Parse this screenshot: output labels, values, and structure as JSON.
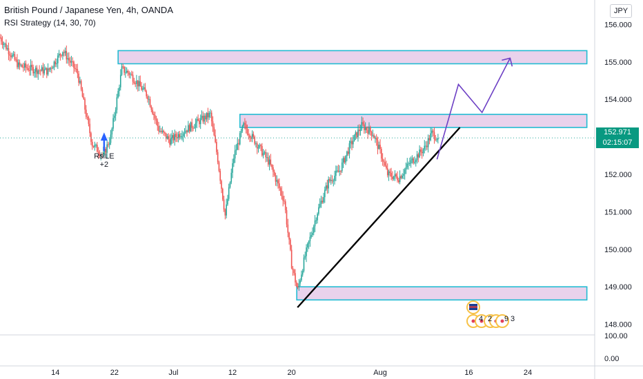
{
  "header": {
    "title": "British Pound / Japanese Yen, 4h, OANDA",
    "indicator": "RSI Strategy (14, 30, 70)"
  },
  "currency_button": "JPY",
  "last_price": {
    "value": "152.971",
    "countdown": "02:15:07",
    "price": 152.971
  },
  "colors": {
    "up": "#26a69a",
    "down": "#ef5350",
    "zone_fill": "#e9d2ec",
    "zone_border": "#22bcd2",
    "trend": "#000000",
    "projection": "#6c3fc4",
    "price_tag": "#089981"
  },
  "signal": {
    "label": "RsiLE",
    "qty": "+2"
  },
  "events": {
    "labels": [
      "4",
      "2",
      "9",
      "3"
    ]
  },
  "chart_data": {
    "type": "candlestick",
    "title": "British Pound / Japanese Yen, 4h, OANDA",
    "ylim": [
      147.6,
      156.4
    ],
    "y_ticks": [
      {
        "value": 156.0,
        "label": "156.000"
      },
      {
        "value": 155.0,
        "label": "155.000"
      },
      {
        "value": 154.0,
        "label": "154.000"
      },
      {
        "value": 152.0,
        "label": "152.000"
      },
      {
        "value": 151.0,
        "label": "151.000"
      },
      {
        "value": 150.0,
        "label": "150.000"
      },
      {
        "value": 149.0,
        "label": "149.000"
      },
      {
        "value": 148.0,
        "label": "148.000"
      }
    ],
    "x_ticks": [
      {
        "day": 14,
        "label": "14"
      },
      {
        "day": 22,
        "label": "22"
      },
      {
        "day": 30,
        "label": "Jul"
      },
      {
        "day": 38,
        "label": "12"
      },
      {
        "day": 46,
        "label": "20"
      },
      {
        "day": 58,
        "label": "Aug"
      },
      {
        "day": 70,
        "label": "16"
      },
      {
        "day": 78,
        "label": "24"
      }
    ],
    "rsi_pane_ticks": [
      "100.00",
      "0.00"
    ],
    "anchors": [
      [
        6.5,
        155.65
      ],
      [
        9,
        154.9
      ],
      [
        11,
        154.8
      ],
      [
        13,
        154.75
      ],
      [
        15,
        155.3
      ],
      [
        17,
        154.7
      ],
      [
        19,
        152.8
      ],
      [
        20.5,
        152.5
      ],
      [
        21.5,
        153.0
      ],
      [
        23,
        154.8
      ],
      [
        24,
        154.7
      ],
      [
        26.5,
        154.1
      ],
      [
        28,
        153.2
      ],
      [
        29.5,
        152.9
      ],
      [
        32.5,
        153.3
      ],
      [
        35,
        153.6
      ],
      [
        36,
        152.4
      ],
      [
        37,
        150.9
      ],
      [
        38.2,
        152.5
      ],
      [
        39.5,
        153.3
      ],
      [
        41,
        152.9
      ],
      [
        43,
        152.3
      ],
      [
        45,
        151.3
      ],
      [
        46,
        149.6
      ],
      [
        46.8,
        148.9
      ],
      [
        47.8,
        149.8
      ],
      [
        49.5,
        151.0
      ],
      [
        51,
        151.8
      ],
      [
        52.5,
        152.1
      ],
      [
        54,
        152.8
      ],
      [
        55.5,
        153.3
      ],
      [
        57,
        153.1
      ],
      [
        58,
        152.6
      ],
      [
        59,
        152.0
      ],
      [
        60.5,
        151.9
      ],
      [
        62,
        152.3
      ],
      [
        64,
        152.7
      ],
      [
        65,
        153.1
      ],
      [
        65.8,
        152.97
      ]
    ],
    "zones": [
      {
        "from_day": 22.5,
        "to_day": 86,
        "low": 154.95,
        "high": 155.3
      },
      {
        "from_day": 39,
        "to_day": 86,
        "low": 153.25,
        "high": 153.6
      },
      {
        "from_day": 46.7,
        "to_day": 86,
        "low": 148.65,
        "high": 149.0
      }
    ],
    "trendline": [
      [
        46.8,
        148.45
      ],
      [
        68.8,
        153.25
      ]
    ],
    "projection": [
      [
        65.7,
        152.4
      ],
      [
        68.6,
        154.4
      ],
      [
        71.8,
        153.65
      ],
      [
        75.6,
        155.1
      ]
    ]
  }
}
